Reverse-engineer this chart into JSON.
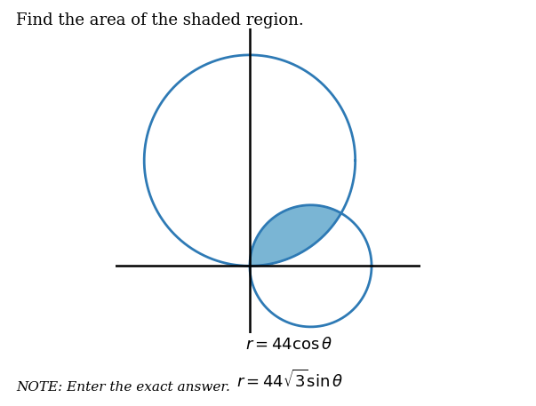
{
  "title": "Find the area of the shaded region.",
  "note": "NOTE: Enter the exact answer.",
  "curve_color": "#2e7ab5",
  "curve_linewidth": 2.0,
  "shade_color": "#7ab5d4",
  "axis_color": "#000000",
  "axis_linewidth": 1.8,
  "background_color": "#ffffff",
  "title_fontsize": 13,
  "eq_fontsize": 13,
  "note_fontsize": 11,
  "sqrt3": 1.7320508075688772,
  "scale": 1.0
}
